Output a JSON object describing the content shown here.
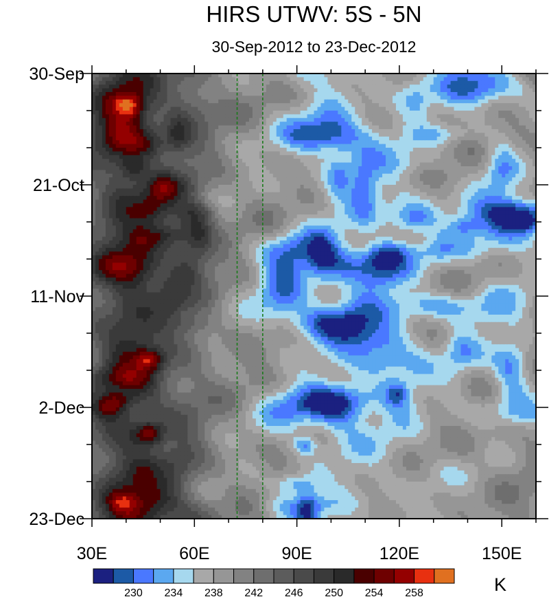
{
  "chart_data": {
    "type": "heatmap",
    "title": "HIRS UTWV: 5S - 5N",
    "subtitle": "30-Sep-2012 to 23-Dec-2012",
    "x_axis": {
      "range": [
        30,
        160
      ],
      "tick_values": [
        30,
        60,
        90,
        120,
        150
      ],
      "tick_labels": [
        "30E",
        "60E",
        "90E",
        "120E",
        "150E"
      ]
    },
    "y_axis": {
      "range_days_from_start": [
        0,
        84
      ],
      "tick_values": [
        0,
        21,
        42,
        63,
        84
      ],
      "tick_labels": [
        "30-Sep",
        "21-Oct",
        "11-Nov",
        "2-Dec",
        "23-Dec"
      ],
      "orientation": "time increases downward"
    },
    "reference_lines": [
      {
        "longitude": 72.5,
        "style": "dashed",
        "color": "#1a7a1a"
      },
      {
        "longitude": 80,
        "style": "dashed",
        "color": "#1a7a1a"
      }
    ],
    "colorbar": {
      "unit": "K",
      "levels": [
        228,
        230,
        232,
        234,
        236,
        238,
        240,
        242,
        244,
        246,
        248,
        250,
        252,
        254,
        256,
        258,
        260
      ],
      "labels": [
        "230",
        "234",
        "238",
        "242",
        "246",
        "250",
        "254",
        "258"
      ],
      "colors": [
        "#1b2080",
        "#1c5aa6",
        "#4a78ff",
        "#5ba8f0",
        "#a6d8ee",
        "#a8a8a8",
        "#969696",
        "#828282",
        "#6e6e6e",
        "#5c5c5c",
        "#4a4a4a",
        "#3a3a3a",
        "#2a2a2a",
        "#4a0000",
        "#6e0000",
        "#940000",
        "#e83010",
        "#e07020"
      ]
    },
    "description_regions": {
      "west_30E_60E": "warm (246-252 K), local maxima 254-258 K near 35-50E",
      "east_80E_160E": "cooler (232-244 K), moist bands 90-115E in mid-Oct, early Nov, early Dec"
    }
  }
}
